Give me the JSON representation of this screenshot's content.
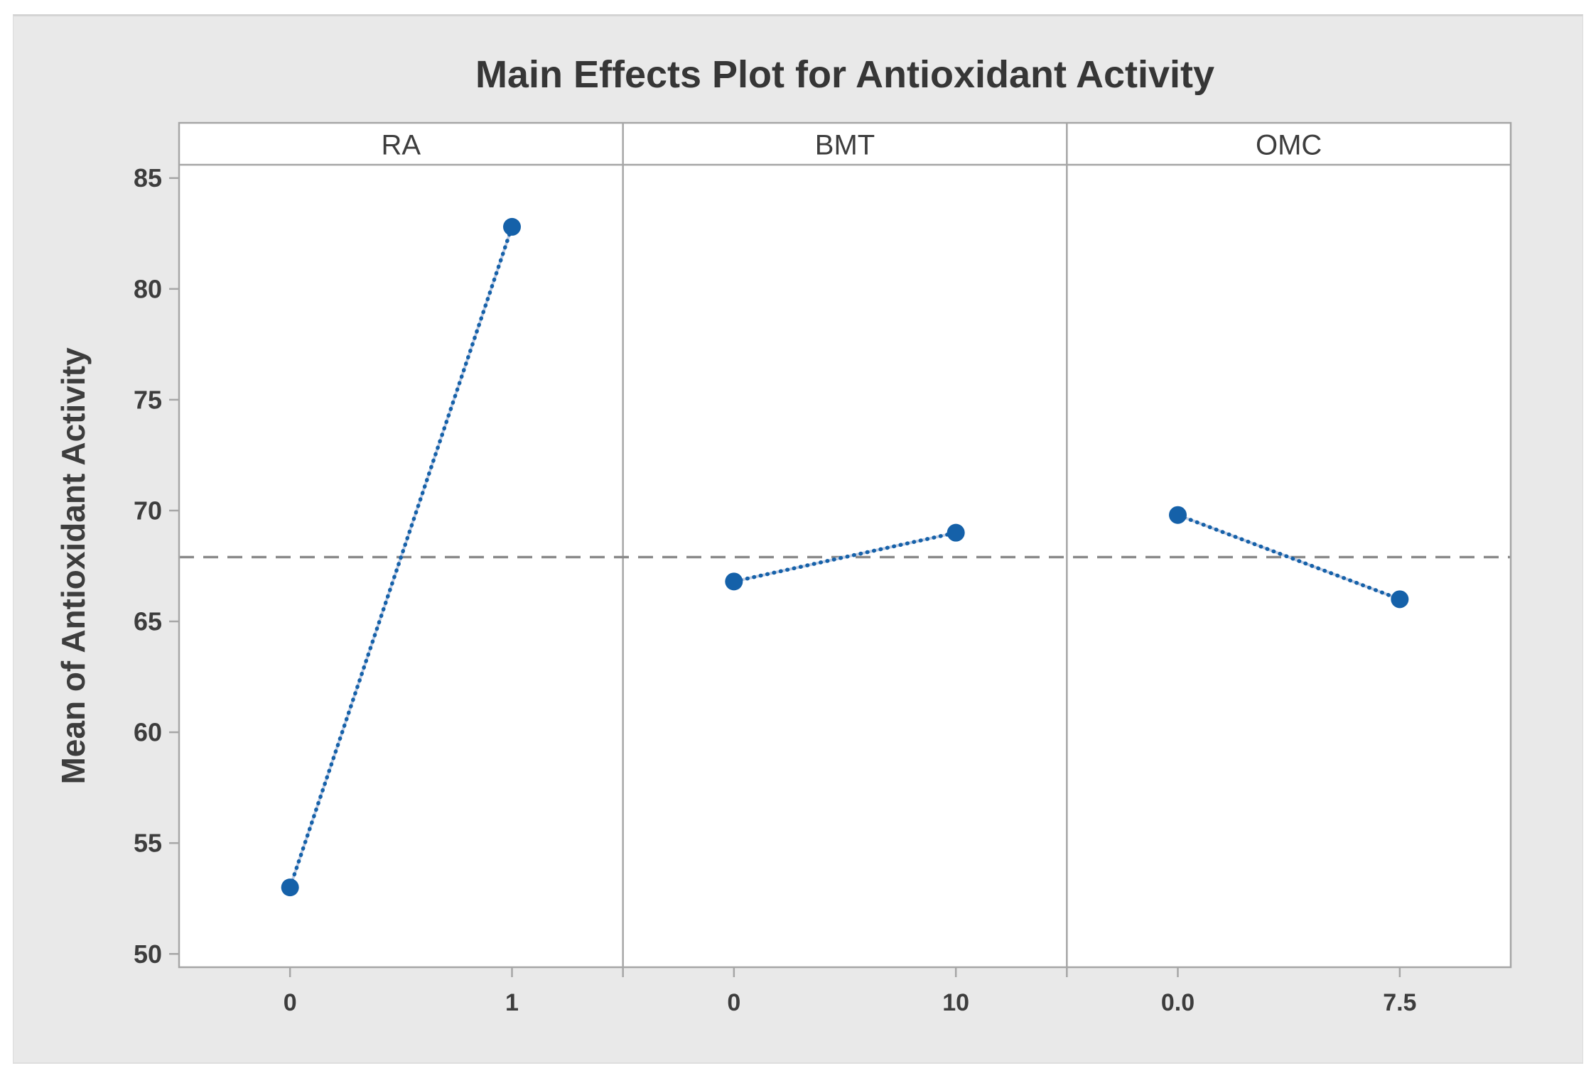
{
  "chart_data": {
    "type": "line",
    "subtype": "main-effects-plot",
    "title": "Main Effects Plot for Antioxidant Activity",
    "ylabel": "Mean of Antioxidant Activity",
    "xlabel": "",
    "ylim": [
      49.4,
      85.6
    ],
    "yticks": [
      50,
      55,
      60,
      65,
      70,
      75,
      80,
      85
    ],
    "grid": false,
    "legend": "none",
    "reference_line": {
      "meaning": "overall mean",
      "value": 67.9,
      "style": "dashed",
      "color": "#8a8a8a"
    },
    "panels": [
      {
        "factor": "RA",
        "categories": [
          "0",
          "1"
        ],
        "values": [
          53.0,
          82.8
        ]
      },
      {
        "factor": "BMT",
        "categories": [
          "0",
          "10"
        ],
        "values": [
          66.8,
          69.0
        ]
      },
      {
        "factor": "OMC",
        "categories": [
          "0.0",
          "7.5"
        ],
        "values": [
          69.8,
          66.0
        ]
      }
    ],
    "series_color": "#1561a9",
    "connector_underlay_color": "#c3cee3",
    "marker": "circle",
    "connector": "dotted"
  },
  "colors": {
    "canvas_background": "#e9e9e9",
    "plot_background": "#ffffff",
    "frame": "#a6a6a6",
    "text": "#3d3d3d"
  }
}
